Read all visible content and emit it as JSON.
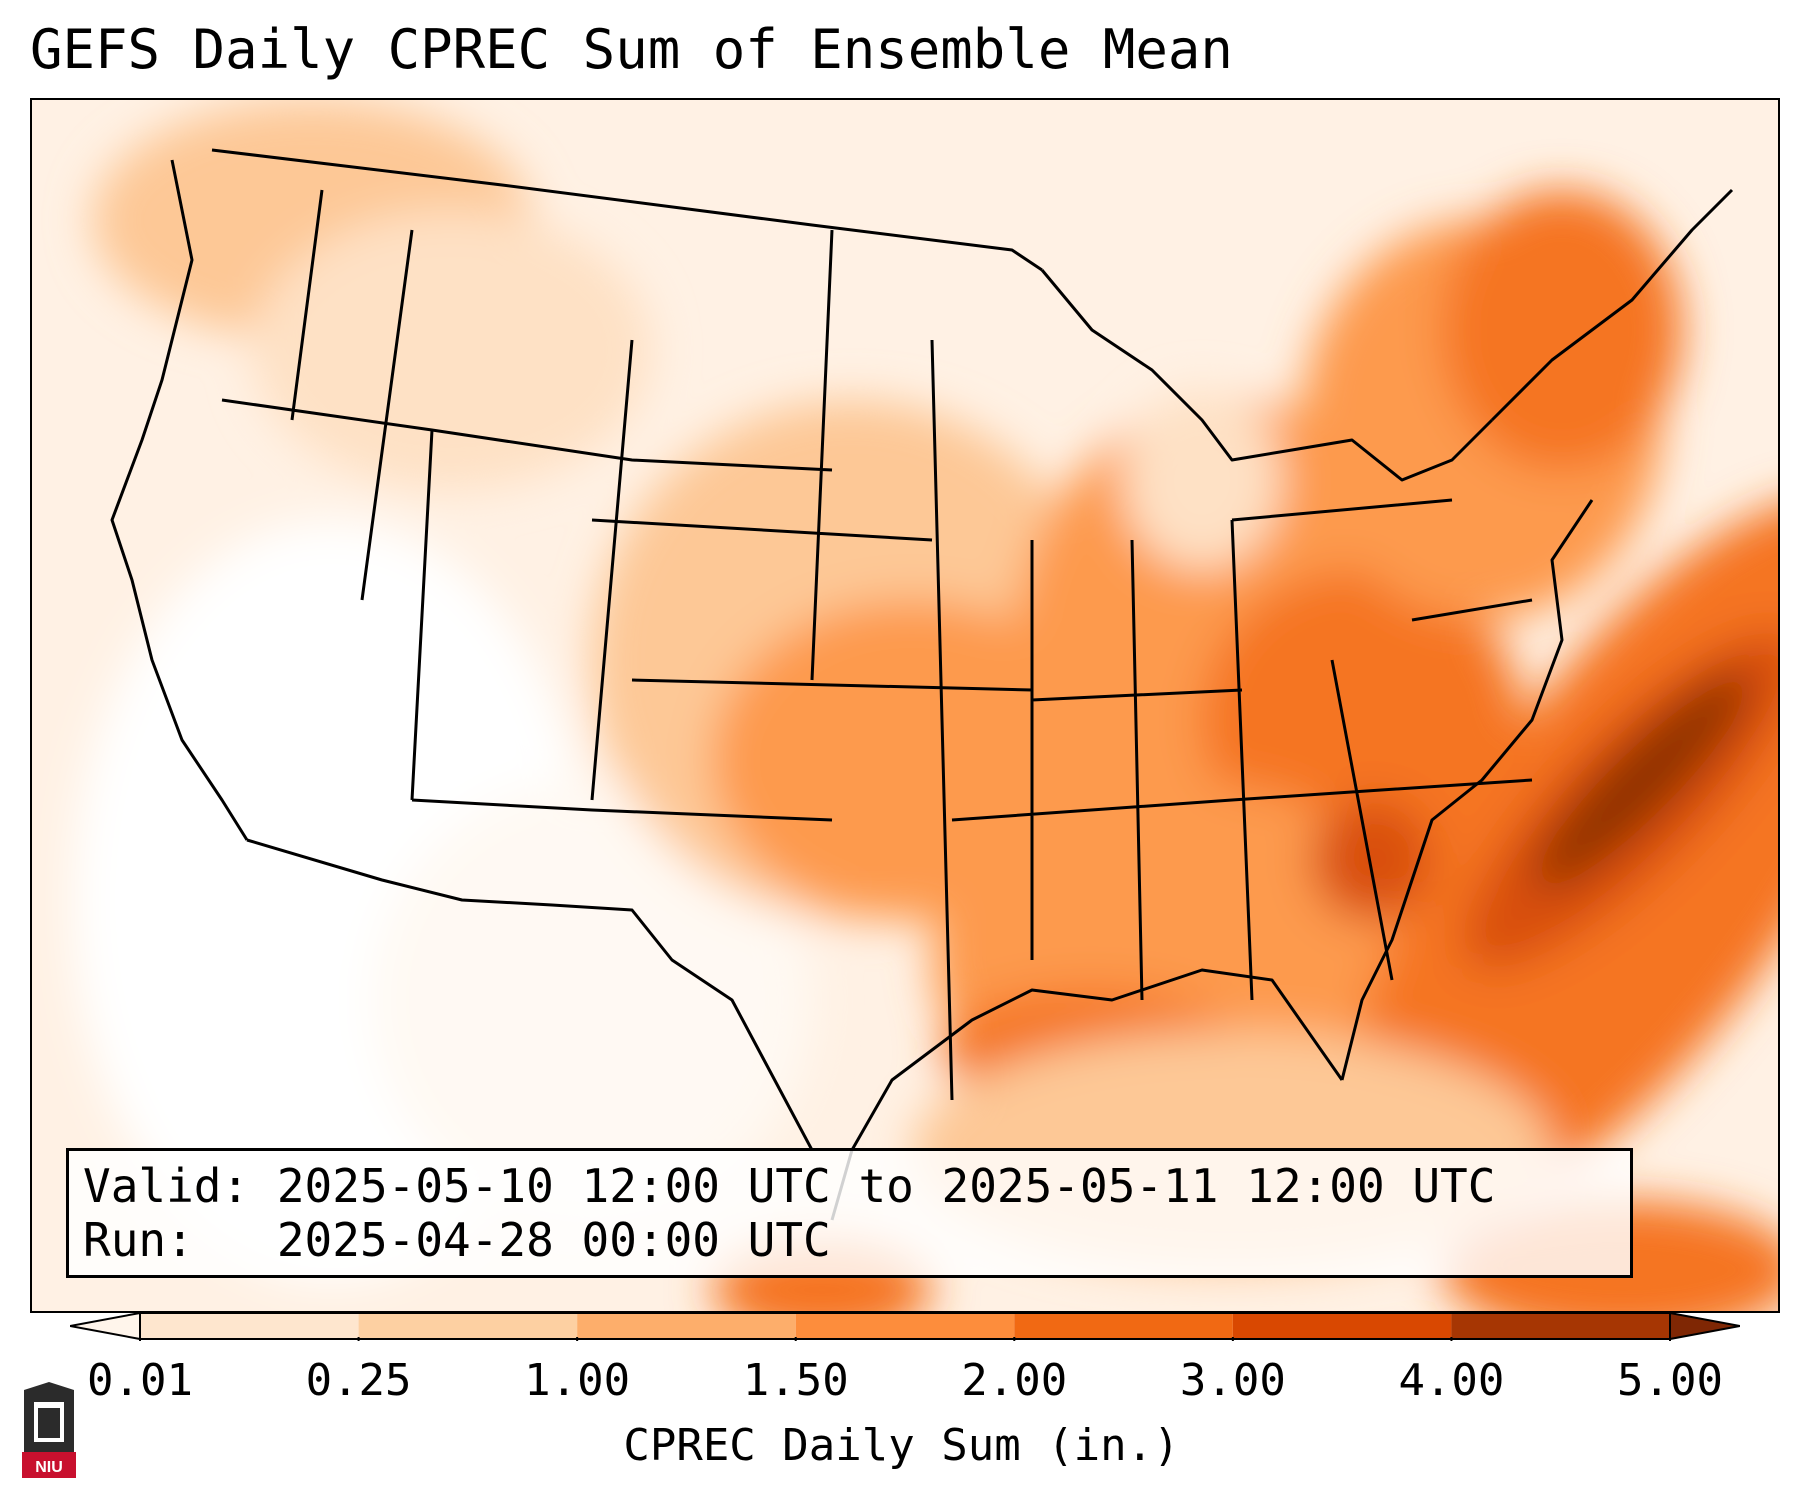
{
  "title": "GEFS Daily CPREC Sum of Ensemble Mean",
  "info": {
    "valid_line": "Valid: 2025-05-10 12:00 UTC to 2025-05-11 12:00 UTC",
    "run_line": "Run:   2025-04-28 00:00 UTC"
  },
  "colorbar": {
    "label": "CPREC Daily Sum (in.)",
    "ticks": [
      "0.01",
      "0.25",
      "1.00",
      "1.50",
      "2.00",
      "3.00",
      "4.00",
      "5.00"
    ],
    "colors": [
      "#fff5eb",
      "#fee6ce",
      "#fdd0a2",
      "#fdae6b",
      "#fd8d3c",
      "#f16913",
      "#d94801",
      "#a63603",
      "#7f2704"
    ]
  },
  "logo": {
    "text": "NIU",
    "colors": {
      "shield": "#2b2b2b",
      "band": "#c8102e"
    }
  },
  "colors": {
    "light": "#fff1e4",
    "pale": "#fee1c5",
    "mid": "#fdc896",
    "orange": "#fd9a4e",
    "deep": "#f57520",
    "dark": "#d94f0b",
    "darkest": "#8f3204"
  }
}
